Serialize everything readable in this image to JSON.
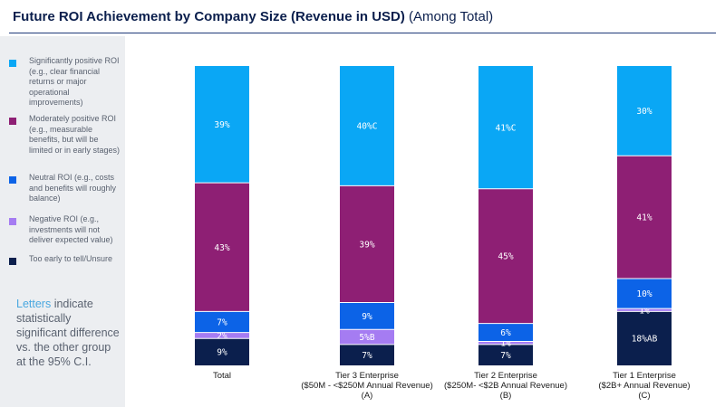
{
  "title": {
    "main": "Future ROI Achievement by Company Size (Revenue in USD)",
    "sub": "(Among Total)"
  },
  "legend": [
    {
      "label": "Significantly positive ROI (e.g., clear financial returns or major operational improvements)",
      "color": "#0aa7f5"
    },
    {
      "label": "Moderately positive ROI (e.g., measurable benefits, but will be limited or in early stages)",
      "color": "#8e1f74"
    },
    {
      "label": "Neutral ROI (e.g., costs and benefits will roughly balance)",
      "color": "#0c63e7"
    },
    {
      "label": "Negative ROI (e.g., investments will not deliver expected value)",
      "color": "#a57cf2"
    },
    {
      "label": "Too early to tell/Unsure",
      "color": "#0b1f4d"
    }
  ],
  "footnote": {
    "accent": "Letters",
    "rest": " indicate statistically significant difference vs. the other group at the 95% C.I."
  },
  "chart_data": {
    "type": "bar",
    "stacked": true,
    "percent_stacked": true,
    "categories": [
      [
        "Total"
      ],
      [
        "Tier 3 Enterprise",
        "($50M - <$250M Annual Revenue)",
        "(A)"
      ],
      [
        "Tier 2 Enterprise",
        "($250M- <$2B Annual Revenue)",
        "(B)"
      ],
      [
        "Tier 1 Enterprise",
        "($2B+ Annual Revenue)",
        "(C)"
      ]
    ],
    "series": [
      {
        "name": "Too early to tell/Unsure",
        "color": "#0b1f4d",
        "label_color": "#ffffff",
        "values": [
          9,
          7,
          7,
          18
        ],
        "labels": [
          "9%",
          "7%",
          "7%",
          "18%AB"
        ]
      },
      {
        "name": "Negative ROI (e.g., investments will not deliver expected value)",
        "color": "#a57cf2",
        "label_color": "#ffffff",
        "values": [
          2,
          5,
          1,
          1
        ],
        "labels": [
          "2%",
          "5%B",
          "1%",
          "1%"
        ]
      },
      {
        "name": "Neutral ROI (e.g., costs and benefits will roughly balance)",
        "color": "#0c63e7",
        "label_color": "#ffffff",
        "values": [
          7,
          9,
          6,
          10
        ],
        "labels": [
          "7%",
          "9%",
          "6%",
          "10%"
        ]
      },
      {
        "name": "Moderately positive ROI (e.g., measurable benefits, but will be limited or in early stages)",
        "color": "#8e1f74",
        "label_color": "#ffffff",
        "values": [
          43,
          39,
          45,
          41
        ],
        "labels": [
          "43%",
          "39%",
          "45%",
          "41%"
        ]
      },
      {
        "name": "Significantly positive ROI (e.g., clear financial returns or major operational improvements)",
        "color": "#0aa7f5",
        "label_color": "#ffffff",
        "values": [
          39,
          40,
          41,
          30
        ],
        "labels": [
          "39%",
          "40%C",
          "41%C",
          "30%"
        ]
      }
    ],
    "ylim": [
      0,
      100
    ],
    "grid": false
  }
}
